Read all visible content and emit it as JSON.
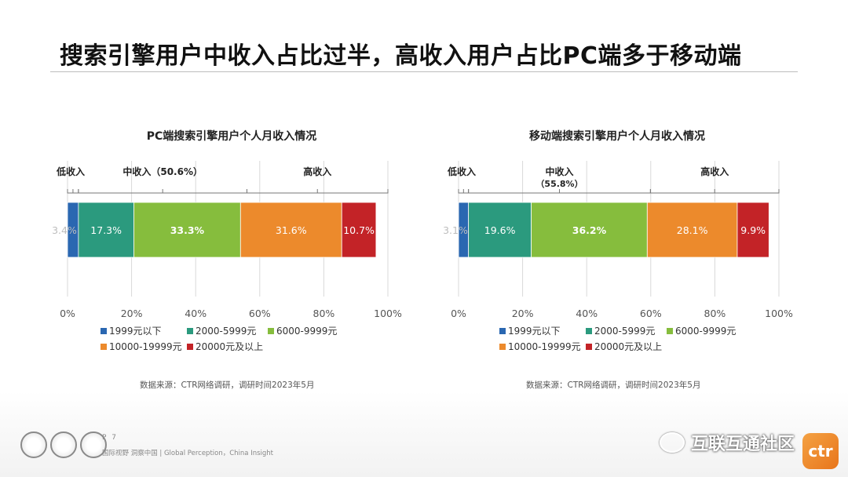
{
  "page": {
    "title": "搜索引擎用户中收入占比过半，高收入用户占比PC端多于移动端",
    "page_number": "P 7",
    "tagline": "国际视野  洞察中国 | Global Perception，China Insight",
    "watermark": "互联互通社区",
    "logo_text": "ctr"
  },
  "colors": [
    "#2a67b1",
    "#2b9a7e",
    "#86bd3d",
    "#ec8a2c",
    "#c32327"
  ],
  "chart_data": [
    {
      "type": "bar",
      "orientation": "horizontal-stacked",
      "title": "PC端搜索引擎用户个人月收入情况",
      "series": [
        {
          "name": "1999元以下",
          "value": 3.4,
          "label": "3.4%"
        },
        {
          "name": "2000-5999元",
          "value": 17.3,
          "label": "17.3%"
        },
        {
          "name": "6000-9999元",
          "value": 33.3,
          "label": "33.3%"
        },
        {
          "name": "10000-19999元",
          "value": 31.6,
          "label": "31.6%"
        },
        {
          "name": "20000元及以上",
          "value": 10.7,
          "label": "10.7%"
        }
      ],
      "brackets": [
        {
          "label": "低收入",
          "from": 0,
          "to": 3.4
        },
        {
          "label": "中收入（50.6%）",
          "from": 3.4,
          "to": 56.0
        },
        {
          "label": "高收入",
          "from": 56.0,
          "to": 100
        }
      ],
      "xlim": [
        0,
        100
      ],
      "xticks": [
        "0%",
        "20%",
        "40%",
        "60%",
        "80%",
        "100%"
      ],
      "grid": true,
      "legend_position": "bottom",
      "source": "数据来源：CTR网络调研，调研时间2023年5月"
    },
    {
      "type": "bar",
      "orientation": "horizontal-stacked",
      "title": "移动端搜索引擎用户个人月收入情况",
      "series": [
        {
          "name": "1999元以下",
          "value": 3.1,
          "label": "3.1%"
        },
        {
          "name": "2000-5999元",
          "value": 19.6,
          "label": "19.6%"
        },
        {
          "name": "6000-9999元",
          "value": 36.2,
          "label": "36.2%"
        },
        {
          "name": "10000-19999元",
          "value": 28.1,
          "label": "28.1%"
        },
        {
          "name": "20000元及以上",
          "value": 9.9,
          "label": "9.9%"
        }
      ],
      "brackets": [
        {
          "label": "低收入",
          "from": 0,
          "to": 3.1
        },
        {
          "label": "中收入",
          "sublabel": "（55.8%）",
          "from": 3.1,
          "to": 59.9
        },
        {
          "label": "高收入",
          "from": 59.9,
          "to": 100
        }
      ],
      "xlim": [
        0,
        100
      ],
      "xticks": [
        "0%",
        "20%",
        "40%",
        "60%",
        "80%",
        "100%"
      ],
      "grid": true,
      "legend_position": "bottom",
      "source": "数据来源：CTR网络调研，调研时间2023年5月"
    }
  ]
}
